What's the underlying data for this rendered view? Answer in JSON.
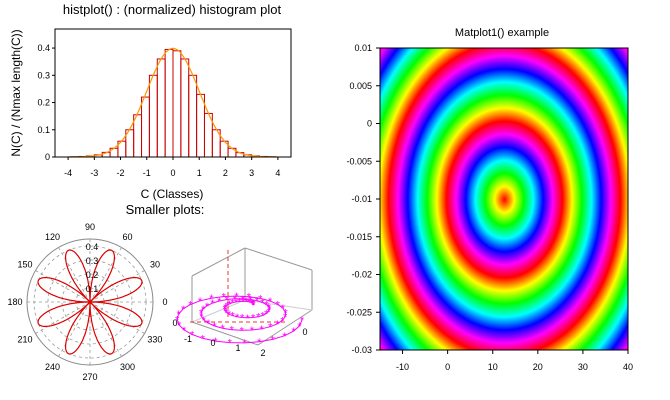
{
  "histogram": {
    "title": "histplot() : (normalized) histogram plot",
    "xlabel": "C (Classes)",
    "ylabel": "N(C) / (Nmax length(C))",
    "xlim": [
      -4.5,
      4.5
    ],
    "ylim": [
      0,
      0.47
    ],
    "xticks": [
      -4,
      -3,
      -2,
      -1,
      0,
      1,
      2,
      3,
      4
    ],
    "yticks": [
      0,
      0.1,
      0.2,
      0.3,
      0.4
    ],
    "bar_color": "#cc0000",
    "curve_color": "#ff9900"
  },
  "section_label": "Smaller plots:",
  "polar": {
    "angle_labels": [
      "0",
      "30",
      "60",
      "90",
      "120",
      "150",
      "180",
      "210",
      "240",
      "270",
      "300",
      "330"
    ],
    "radius_labels": [
      "0.1",
      "0.2",
      "0.3",
      "0.4"
    ],
    "rmax": 0.45,
    "petals": 8,
    "curve_color": "#dd0000"
  },
  "param3d": {
    "xticks": [
      "-1",
      "0",
      "1",
      "2"
    ],
    "yticks": [
      "0"
    ],
    "zticks": [
      "0"
    ],
    "color": "#ff00ff"
  },
  "matplot": {
    "title": "Matplot1() example",
    "xlim": [
      -15,
      40
    ],
    "ylim": [
      -0.03,
      0.01
    ],
    "xticks": [
      "-10",
      "0",
      "10",
      "20",
      "30",
      "40"
    ],
    "yticks": [
      "0.01",
      "0.005",
      "0",
      "-0.005",
      "-0.01",
      "-0.015",
      "-0.02",
      "-0.025",
      "-0.03"
    ],
    "center": [
      12.5,
      -0.01
    ]
  },
  "chart_data": [
    {
      "type": "bar",
      "title": "histplot() : (normalized) histogram plot",
      "xlabel": "C (Classes)",
      "ylabel": "N(C) / (Nmax length(C))",
      "categories": [
        -3.75,
        -3.45,
        -3.15,
        -2.85,
        -2.55,
        -2.25,
        -1.95,
        -1.65,
        -1.35,
        -1.05,
        -0.75,
        -0.45,
        -0.15,
        0.15,
        0.45,
        0.75,
        1.05,
        1.35,
        1.65,
        1.95,
        2.25,
        2.55,
        2.85,
        3.15,
        3.45,
        3.75
      ],
      "bin_width": 0.3,
      "values": [
        0.001,
        0.002,
        0.004,
        0.008,
        0.017,
        0.032,
        0.058,
        0.1,
        0.155,
        0.22,
        0.3,
        0.36,
        0.395,
        0.39,
        0.36,
        0.3,
        0.23,
        0.16,
        0.1,
        0.058,
        0.032,
        0.016,
        0.008,
        0.004,
        0.002,
        0.001
      ],
      "overlay_curve": "normal density",
      "xlim": [
        -4.5,
        4.5
      ],
      "ylim": [
        0,
        0.47
      ]
    },
    {
      "type": "line",
      "subtype": "polar",
      "curve": "r = 0.4*|sin(4*theta)| rose",
      "petals": 8,
      "rmax": 0.45
    },
    {
      "type": "line",
      "subtype": "3d-parametric",
      "points": "spiral helix with star markers"
    },
    {
      "type": "heatmap",
      "title": "Matplot1() example",
      "pattern": "concentric rings, hue cycling",
      "xlim": [
        -15,
        40
      ],
      "ylim": [
        -0.03,
        0.01
      ],
      "center": [
        12.5,
        -0.01
      ]
    }
  ]
}
